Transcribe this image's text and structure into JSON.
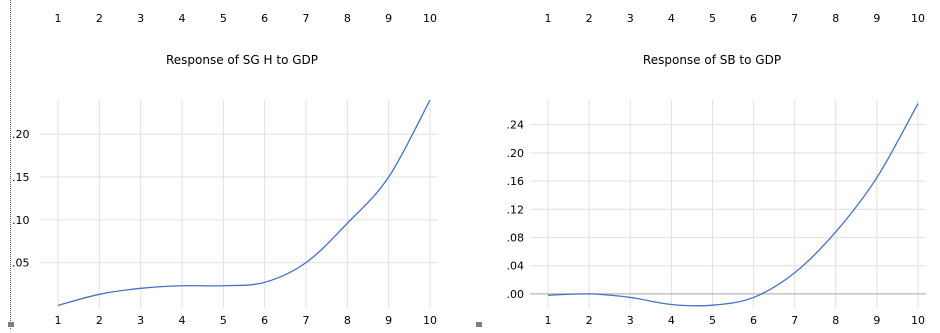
{
  "top_strip": {
    "left_ticks": [
      "1",
      "2",
      "3",
      "4",
      "5",
      "6",
      "7",
      "8",
      "9",
      "10"
    ],
    "right_ticks": [
      "1",
      "2",
      "3",
      "4",
      "5",
      "6",
      "7",
      "8",
      "9",
      "10"
    ]
  },
  "chart_data": [
    {
      "type": "line",
      "title": "Response of SG H to GDP",
      "xlabel": "",
      "ylabel": "",
      "x": [
        1,
        2,
        3,
        4,
        5,
        6,
        7,
        8,
        9,
        10
      ],
      "x_tick_labels": [
        "1",
        "2",
        "3",
        "4",
        "5",
        "6",
        "7",
        "8",
        "9",
        "10"
      ],
      "y_tick_values": [
        0.05,
        0.1,
        0.15,
        0.2
      ],
      "y_tick_labels": [
        ".05",
        ".10",
        ".15",
        ".20"
      ],
      "ylim": [
        -0.003,
        0.24
      ],
      "grid": true,
      "series": [
        {
          "color": "#4472c4",
          "values": [
            0.0,
            0.013,
            0.02,
            0.023,
            0.023,
            0.027,
            0.05,
            0.096,
            0.15,
            0.24
          ]
        }
      ]
    },
    {
      "type": "line",
      "title": "Response of SB to GDP",
      "xlabel": "",
      "ylabel": "",
      "x": [
        1,
        2,
        3,
        4,
        5,
        6,
        7,
        8,
        9,
        10
      ],
      "x_tick_labels": [
        "1",
        "2",
        "3",
        "4",
        "5",
        "6",
        "7",
        "8",
        "9",
        "10"
      ],
      "y_tick_values": [
        0.0,
        0.04,
        0.08,
        0.12,
        0.16,
        0.2,
        0.24
      ],
      "y_tick_labels": [
        ".00",
        ".04",
        ".08",
        ".12",
        ".16",
        ".20",
        ".24"
      ],
      "ylim": [
        -0.02,
        0.275
      ],
      "grid": true,
      "zero_line": true,
      "series": [
        {
          "color": "#4472c4",
          "values": [
            -0.002,
            0.0,
            -0.005,
            -0.015,
            -0.016,
            -0.005,
            0.03,
            0.088,
            0.165,
            0.27
          ]
        }
      ]
    }
  ]
}
